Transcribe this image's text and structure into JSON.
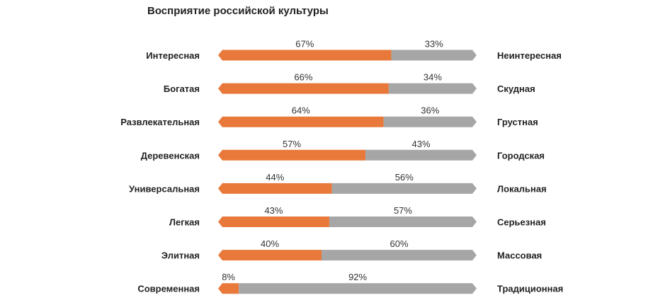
{
  "chart_data": {
    "type": "bar",
    "title": "Восприятие российской культуры",
    "categories_left": [
      "Интересная",
      "Богатая",
      "Развлекательная",
      "Деревенская",
      "Универсальная",
      "Легкая",
      "Элитная",
      "Современная"
    ],
    "categories_right": [
      "Неинтересная",
      "Скудная",
      "Грустная",
      "Городская",
      "Локальная",
      "Серьезная",
      "Массовая",
      "Традиционная"
    ],
    "values_left": [
      67,
      66,
      64,
      57,
      44,
      43,
      40,
      8
    ],
    "values_right": [
      33,
      34,
      36,
      43,
      56,
      57,
      60,
      92
    ],
    "labels_left": [
      "67%",
      "66%",
      "64%",
      "57%",
      "44%",
      "43%",
      "40%",
      "8%"
    ],
    "labels_right": [
      "33%",
      "34%",
      "36%",
      "43%",
      "56%",
      "57%",
      "60%",
      "92%"
    ],
    "xlim": [
      0,
      100
    ],
    "colors": {
      "left": "#E8793A",
      "right": "#A6A6A6"
    }
  }
}
